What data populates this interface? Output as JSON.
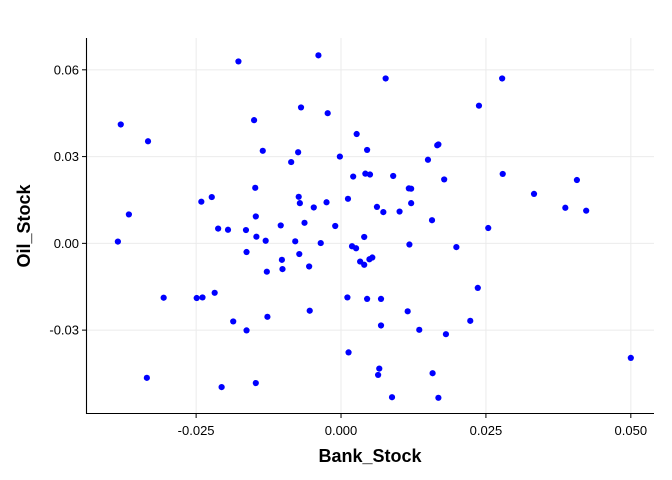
{
  "chart_data": {
    "type": "scatter",
    "title": "",
    "xlabel": "Bank_Stock",
    "ylabel": "Oil_Stock",
    "xlim": [
      -0.044,
      0.054
    ],
    "ylim": [
      -0.059,
      0.071
    ],
    "x_ticks": [
      -0.025,
      0.0,
      0.025,
      0.05
    ],
    "x_tick_labels": [
      "-0.025",
      "0.000",
      "0.025",
      "0.050"
    ],
    "y_ticks": [
      -0.03,
      0.0,
      0.03,
      0.06
    ],
    "y_tick_labels": [
      "-0.03",
      "0.00",
      "0.03",
      "0.06"
    ],
    "grid": true,
    "point_color": "#0000ff",
    "gridline_color": "#ebebeb",
    "axis_color": "#000000",
    "series": [
      {
        "x": [
          -0.0039,
          -0.0177,
          0.0077,
          0.0278,
          -0.0069,
          0.0238,
          -0.0023,
          -0.038,
          -0.015,
          -0.0333,
          0.0168,
          0.0027,
          0.0045,
          -0.0135,
          -0.0074,
          -0.0086,
          0.0166,
          0.015,
          -0.0002,
          0.0021,
          0.0042,
          0.0279,
          -0.0148,
          -0.0073,
          0.0178,
          0.0407,
          0.0333,
          -0.0223,
          -0.0241,
          -0.0071,
          0.0012,
          0.005,
          0.009,
          0.0117,
          0.0121,
          -0.0147,
          0.0387,
          0.0423,
          -0.0366,
          0.0121,
          0.0062,
          0.0073,
          -0.0063,
          -0.0047,
          -0.001,
          -0.0025,
          0.0101,
          -0.0164,
          0.0157,
          -0.0104,
          -0.0035,
          0.004,
          -0.0146,
          -0.0195,
          -0.0212,
          0.0254,
          -0.0079,
          -0.0385,
          0.0019,
          0.0026,
          0.0118,
          0.0199,
          -0.013,
          -0.0055,
          -0.0163,
          0.0049,
          0.0054,
          0.004,
          0.0033,
          -0.0101,
          -0.0128,
          -0.0102,
          -0.0239,
          0.0236,
          -0.0306,
          -0.0249,
          -0.0218,
          0.0045,
          0.0011,
          0.0069,
          0.0115,
          0.0223,
          -0.0054,
          0.0069,
          -0.0186,
          -0.0127,
          0.0066,
          0.0135,
          -0.0163,
          0.0181,
          0.0013,
          0.05,
          0.0158,
          0.0064,
          -0.0335,
          -0.0147,
          -0.0206,
          0.0088,
          0.0168,
          -0.0072
        ],
        "y": [
          0.065,
          0.0629,
          0.057,
          0.057,
          0.047,
          0.0476,
          0.045,
          0.0411,
          0.0426,
          0.0353,
          0.0342,
          0.0378,
          0.0323,
          0.032,
          0.0315,
          0.0281,
          0.0339,
          0.0289,
          0.03,
          0.0231,
          0.0241,
          0.024,
          0.0192,
          0.0161,
          0.0221,
          0.0219,
          0.0171,
          0.016,
          0.0144,
          0.0139,
          0.0154,
          0.0238,
          0.0233,
          0.019,
          0.0189,
          0.0093,
          0.0123,
          0.0113,
          0.01,
          0.0139,
          0.0126,
          0.0108,
          0.0071,
          0.0124,
          0.006,
          0.0142,
          0.011,
          0.0046,
          0.008,
          0.0062,
          0.0001,
          0.0022,
          0.0023,
          0.0047,
          0.0051,
          0.0053,
          0.0007,
          0.0006,
          -0.001,
          -0.0017,
          -0.0004,
          -0.0013,
          0.0009,
          -0.008,
          -0.003,
          -0.0055,
          -0.0049,
          -0.0074,
          -0.0063,
          -0.0089,
          -0.0098,
          -0.0057,
          -0.0187,
          -0.0154,
          -0.0188,
          -0.0189,
          -0.0171,
          -0.0192,
          -0.0187,
          -0.0192,
          -0.0235,
          -0.0268,
          -0.0233,
          -0.0284,
          -0.027,
          -0.0254,
          -0.0433,
          -0.0299,
          -0.0301,
          -0.0314,
          -0.0377,
          -0.0396,
          -0.0449,
          -0.0455,
          -0.0465,
          -0.0483,
          -0.0497,
          -0.0532,
          -0.0534,
          -0.0037
        ]
      }
    ]
  }
}
